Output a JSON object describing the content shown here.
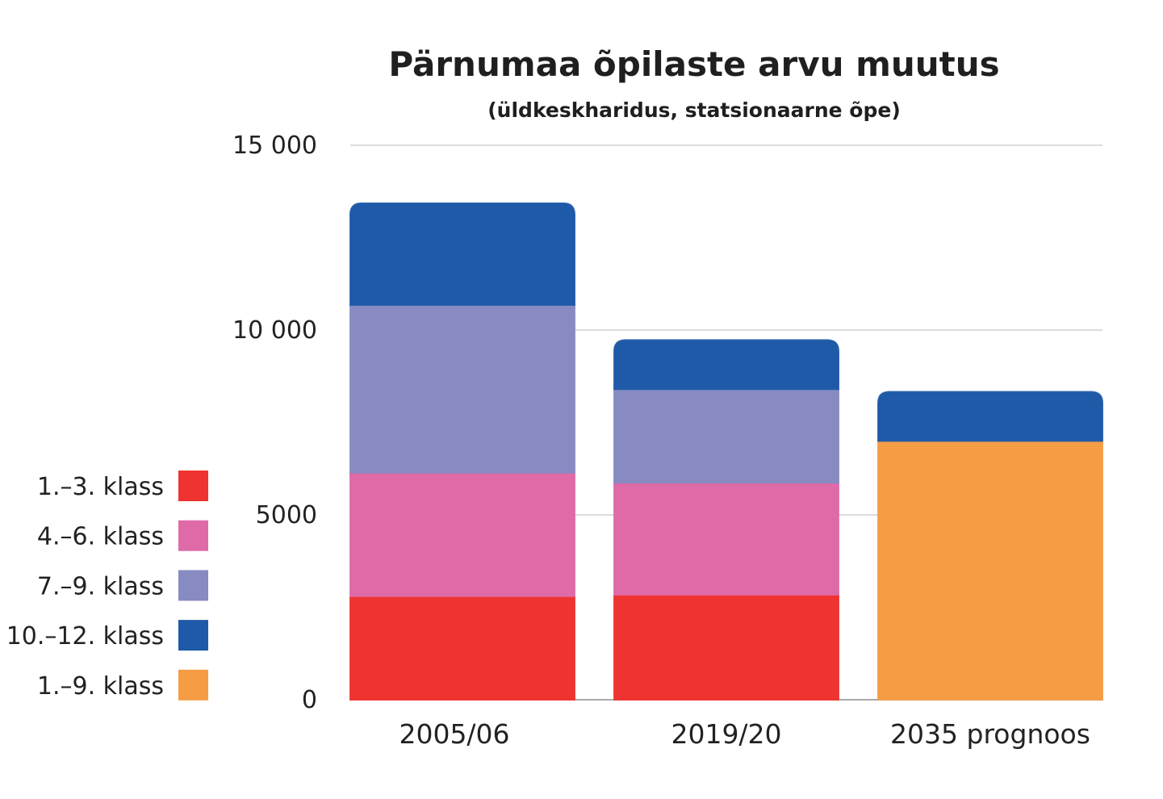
{
  "chart_data": {
    "type": "bar",
    "stacked": true,
    "title": "Pärnumaa õpilaste arvu muutus",
    "subtitle": "(üldkeskharidus, statsionaarne õpe)",
    "xlabel": "",
    "ylabel": "",
    "categories": [
      "2005/06",
      "2019/20",
      "2035 prognoos"
    ],
    "ylim": [
      0,
      15000
    ],
    "yticks": [
      0,
      5000,
      10000,
      15000
    ],
    "ytick_labels": [
      "0",
      "5000",
      "10 000",
      "15 000"
    ],
    "grid": true,
    "legend_position": "left",
    "series": [
      {
        "name": "1.–3. klass",
        "color": "#ee3331",
        "values": [
          2800,
          2840,
          null
        ]
      },
      {
        "name": "4.–6. klass",
        "color": "#df6aa8",
        "values": [
          3340,
          3030,
          null
        ]
      },
      {
        "name": "7.–9. klass",
        "color": "#878bc2",
        "values": [
          4540,
          2530,
          null
        ]
      },
      {
        "name": "10.–12. klass",
        "color": "#1f5aa8",
        "values": [
          2750,
          1330,
          1330
        ]
      },
      {
        "name": "1.–9. klass",
        "color": "#f59c45",
        "values": [
          null,
          null,
          7000
        ]
      }
    ]
  }
}
